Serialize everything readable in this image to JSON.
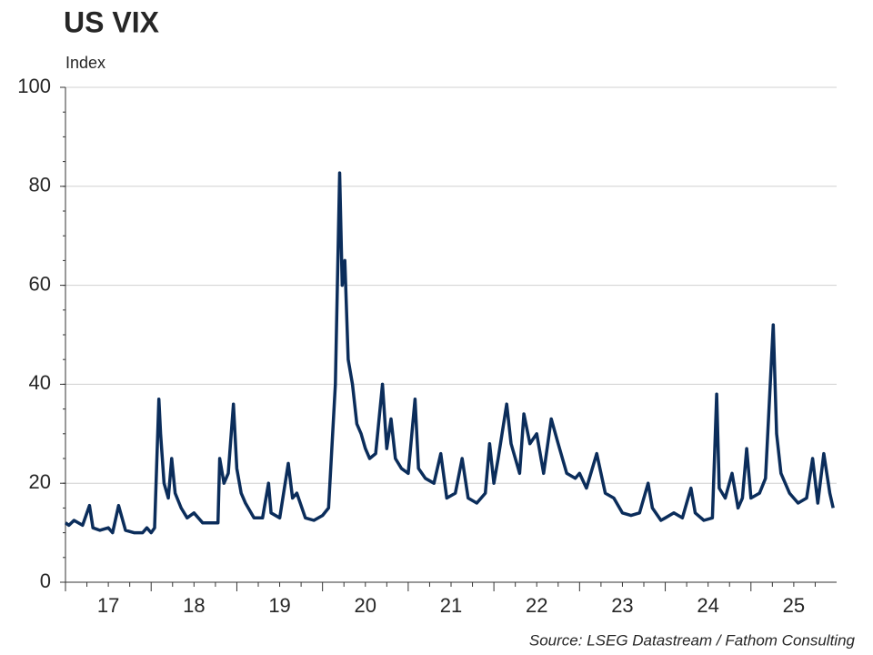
{
  "chart_data": {
    "type": "line",
    "title": "US VIX",
    "y_label": "Index",
    "source": "Source: LSEG Datastream / Fathom Consulting",
    "xlim": [
      17,
      26
    ],
    "ylim": [
      0,
      100
    ],
    "yticks": [
      0,
      20,
      40,
      60,
      80,
      100
    ],
    "grid": true,
    "xticks": [
      {
        "value": 17.5,
        "label": "17"
      },
      {
        "value": 18.5,
        "label": "18"
      },
      {
        "value": 19.5,
        "label": "19"
      },
      {
        "value": 20.5,
        "label": "20"
      },
      {
        "value": 21.5,
        "label": "21"
      },
      {
        "value": 22.5,
        "label": "22"
      },
      {
        "value": 23.5,
        "label": "23"
      },
      {
        "value": 24.5,
        "label": "24"
      },
      {
        "value": 25.5,
        "label": "25"
      }
    ],
    "series": [
      {
        "name": "US VIX",
        "color": "#0b2d5b",
        "x": [
          17.0,
          17.04,
          17.1,
          17.2,
          17.28,
          17.32,
          17.4,
          17.5,
          17.55,
          17.62,
          17.7,
          17.8,
          17.9,
          17.95,
          18.0,
          18.04,
          18.09,
          18.11,
          18.15,
          18.2,
          18.24,
          18.28,
          18.35,
          18.42,
          18.5,
          18.6,
          18.7,
          18.78,
          18.8,
          18.85,
          18.9,
          18.96,
          19.0,
          19.05,
          19.1,
          19.2,
          19.3,
          19.37,
          19.4,
          19.5,
          19.6,
          19.65,
          19.7,
          19.8,
          19.9,
          20.0,
          20.07,
          20.15,
          20.2,
          20.23,
          20.26,
          20.3,
          20.35,
          20.4,
          20.45,
          20.5,
          20.55,
          20.62,
          20.7,
          20.75,
          20.8,
          20.85,
          20.92,
          21.0,
          21.08,
          21.12,
          21.2,
          21.3,
          21.38,
          21.45,
          21.55,
          21.63,
          21.7,
          21.8,
          21.9,
          21.95,
          22.0,
          22.05,
          22.15,
          22.2,
          22.3,
          22.35,
          22.42,
          22.5,
          22.58,
          22.67,
          22.75,
          22.85,
          22.95,
          23.0,
          23.08,
          23.2,
          23.3,
          23.4,
          23.5,
          23.6,
          23.7,
          23.8,
          23.85,
          23.95,
          24.0,
          24.1,
          24.2,
          24.3,
          24.35,
          24.45,
          24.55,
          24.6,
          24.63,
          24.7,
          24.78,
          24.85,
          24.9,
          24.95,
          25.0,
          25.1,
          25.17,
          25.26,
          25.3,
          25.35,
          25.45,
          25.55,
          25.65,
          25.72,
          25.78,
          25.85,
          25.92,
          25.96
        ],
        "values": [
          12,
          11.5,
          12.5,
          11.5,
          15.5,
          11,
          10.5,
          11,
          10,
          15.5,
          10.5,
          10,
          10,
          11,
          10,
          11,
          37,
          30,
          20,
          17,
          25,
          18,
          15,
          13,
          14,
          12,
          12,
          12,
          25,
          20,
          22,
          36,
          23,
          18,
          16,
          13,
          13,
          20,
          14,
          13,
          24,
          17,
          18,
          13,
          12.5,
          13.5,
          15,
          40,
          82.7,
          60,
          65,
          45,
          40,
          32,
          30,
          27,
          25,
          26,
          40,
          27,
          33,
          25,
          23,
          22,
          37,
          23,
          21,
          20,
          26,
          17,
          18,
          25,
          17,
          16,
          18,
          28,
          20,
          25,
          36,
          28,
          22,
          34,
          28,
          30,
          22,
          33,
          28,
          22,
          21,
          22,
          19,
          26,
          18,
          17,
          14,
          13.5,
          14,
          20,
          15,
          12.5,
          13,
          14,
          13,
          19,
          14,
          12.5,
          13,
          38,
          19,
          17,
          22,
          15,
          17,
          27,
          17,
          18,
          21,
          52,
          30,
          22,
          18,
          16,
          17,
          25,
          16,
          26,
          18,
          15
        ]
      }
    ]
  }
}
